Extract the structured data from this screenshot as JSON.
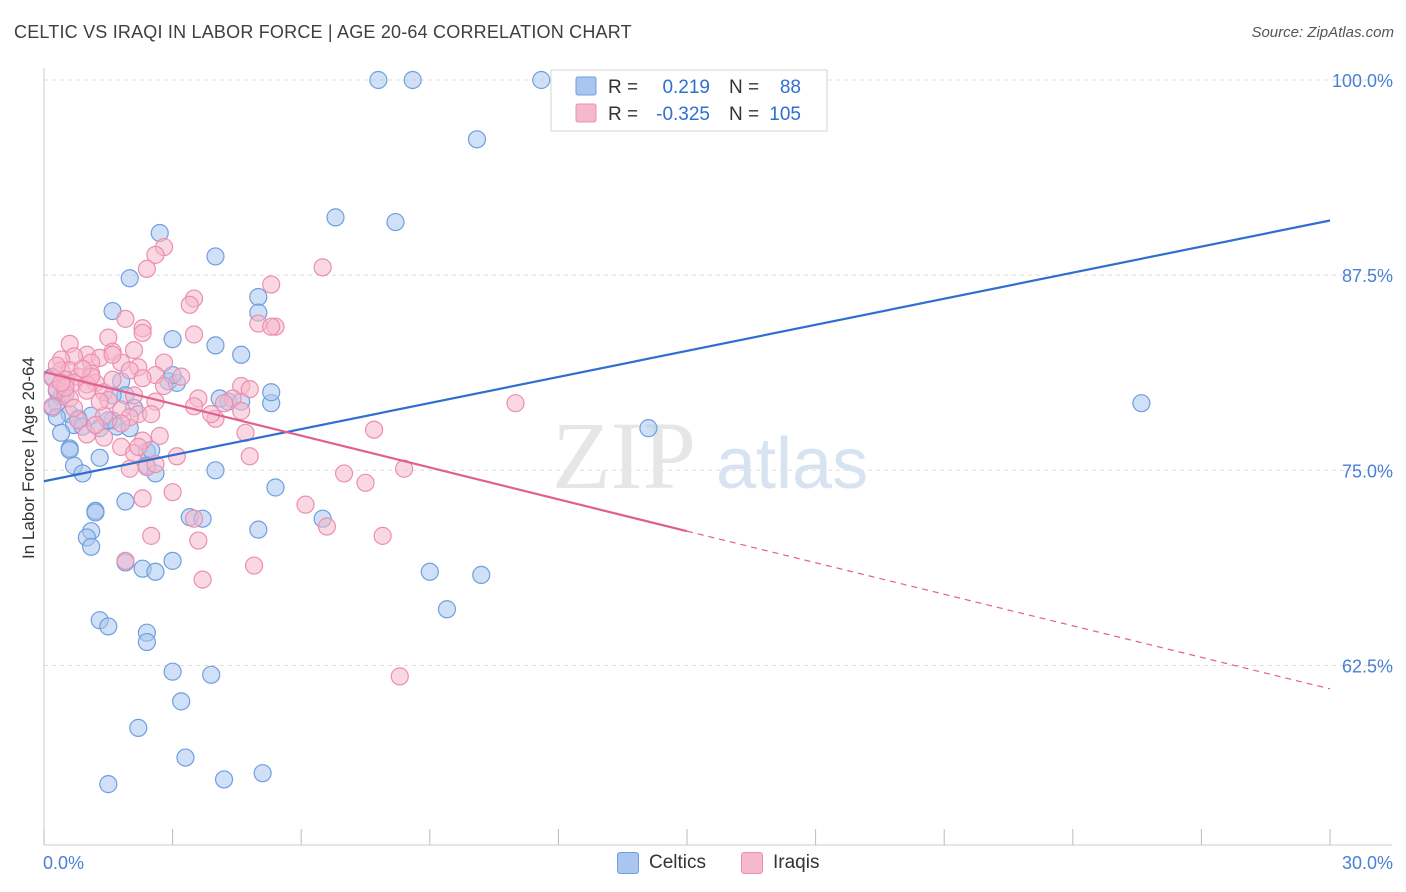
{
  "title": "CELTIC VS IRAQI IN LABOR FORCE | AGE 20-64 CORRELATION CHART",
  "source": "Source: ZipAtlas.com",
  "watermark": {
    "zip": "ZIP",
    "atlas": "atlas"
  },
  "colors": {
    "celtic_fill": "#a9c6ef",
    "celtic_stroke": "#6f9fe0",
    "celtic_line": "#2f6fd0",
    "iraqi_fill": "#f5b8cc",
    "iraqi_stroke": "#ec8fae",
    "iraqi_line": "#e0608e",
    "tick_label": "#4a7fd6",
    "grid": "#dddddd"
  },
  "legend": {
    "rows": [
      {
        "r_label": "R =",
        "r_value": "0.219",
        "n_label": "N =",
        "n_value": "88"
      },
      {
        "r_label": "R =",
        "r_value": "-0.325",
        "n_label": "N =",
        "n_value": "105"
      }
    ]
  },
  "bottom_legend": {
    "celtics": "Celtics",
    "iraqis": "Iraqis"
  },
  "chart_data": {
    "type": "scatter",
    "title": "CELTIC VS IRAQI IN LABOR FORCE | AGE 20-64 CORRELATION CHART",
    "xlabel": "",
    "ylabel": "In Labor Force | Age 20-64",
    "xlim": [
      0,
      30
    ],
    "ylim": [
      51,
      100
    ],
    "x_tick_labels": [
      "0.0%",
      "30.0%"
    ],
    "y_ticks": [
      62.5,
      75.0,
      87.5,
      100.0
    ],
    "y_tick_labels": [
      "62.5%",
      "75.0%",
      "87.5%",
      "100.0%"
    ],
    "series": [
      {
        "name": "Celtics",
        "r": 0.219,
        "n": 88,
        "trend": {
          "x0": 0,
          "y0": 74.3,
          "x1": 30,
          "y1": 91.0
        },
        "points": [
          [
            7.8,
            100
          ],
          [
            8.6,
            100
          ],
          [
            11.6,
            100
          ],
          [
            10.1,
            96.2
          ],
          [
            6.8,
            91.2
          ],
          [
            8.2,
            90.9
          ],
          [
            2.7,
            90.2
          ],
          [
            4.0,
            88.7
          ],
          [
            2.0,
            87.3
          ],
          [
            5.0,
            86.1
          ],
          [
            1.6,
            85.2
          ],
          [
            5.0,
            85.1
          ],
          [
            3.0,
            83.4
          ],
          [
            4.0,
            83.0
          ],
          [
            4.6,
            82.4
          ],
          [
            0.2,
            81.0
          ],
          [
            1.8,
            80.7
          ],
          [
            2.9,
            80.7
          ],
          [
            3.1,
            80.6
          ],
          [
            0.5,
            79.9
          ],
          [
            0.4,
            79.7
          ],
          [
            1.9,
            79.8
          ],
          [
            0.3,
            79.3
          ],
          [
            1.6,
            79.8
          ],
          [
            4.3,
            79.4
          ],
          [
            4.6,
            79.4
          ],
          [
            5.3,
            79.3
          ],
          [
            0.2,
            79.0
          ],
          [
            0.6,
            78.6
          ],
          [
            1.1,
            78.5
          ],
          [
            0.3,
            78.4
          ],
          [
            0.8,
            78.3
          ],
          [
            1.6,
            78.2
          ],
          [
            1.7,
            77.8
          ],
          [
            0.7,
            77.9
          ],
          [
            1.3,
            77.7
          ],
          [
            0.4,
            77.4
          ],
          [
            2.1,
            79.0
          ],
          [
            14.1,
            77.7
          ],
          [
            25.6,
            79.3
          ],
          [
            0.6,
            76.4
          ],
          [
            0.6,
            76.3
          ],
          [
            2.4,
            76.2
          ],
          [
            2.5,
            76.3
          ],
          [
            1.3,
            75.8
          ],
          [
            0.7,
            75.3
          ],
          [
            2.4,
            75.3
          ],
          [
            2.6,
            74.8
          ],
          [
            4.0,
            75.0
          ],
          [
            0.9,
            74.8
          ],
          [
            5.4,
            73.9
          ],
          [
            1.9,
            73.0
          ],
          [
            1.2,
            72.4
          ],
          [
            1.2,
            72.3
          ],
          [
            3.4,
            72.0
          ],
          [
            3.7,
            71.9
          ],
          [
            6.5,
            71.9
          ],
          [
            5.0,
            71.2
          ],
          [
            1.1,
            71.1
          ],
          [
            1.0,
            70.7
          ],
          [
            1.1,
            70.1
          ],
          [
            1.9,
            69.1
          ],
          [
            3.0,
            69.2
          ],
          [
            2.3,
            68.7
          ],
          [
            2.6,
            68.5
          ],
          [
            9.0,
            68.5
          ],
          [
            10.2,
            68.3
          ],
          [
            9.4,
            66.1
          ],
          [
            1.3,
            65.4
          ],
          [
            1.5,
            65.0
          ],
          [
            2.4,
            64.6
          ],
          [
            2.4,
            64.0
          ],
          [
            3.0,
            62.1
          ],
          [
            3.9,
            61.9
          ],
          [
            3.2,
            60.2
          ],
          [
            2.2,
            58.5
          ],
          [
            3.3,
            56.6
          ],
          [
            1.5,
            54.9
          ],
          [
            4.2,
            55.2
          ],
          [
            5.1,
            55.6
          ],
          [
            3.0,
            81.1
          ],
          [
            1.5,
            78.2
          ],
          [
            0.3,
            80.1
          ],
          [
            0.5,
            80.5
          ],
          [
            2.0,
            77.7
          ],
          [
            4.1,
            79.6
          ],
          [
            5.3,
            80.0
          ],
          [
            0.9,
            77.8
          ]
        ]
      },
      {
        "name": "Iraqis",
        "r": -0.325,
        "n": 105,
        "trend": {
          "x0": 0,
          "y0": 81.3,
          "x1": 15,
          "y1": 71.1,
          "dash_x1": 30,
          "dash_y1": 61.0
        },
        "points": [
          [
            2.8,
            89.3
          ],
          [
            2.6,
            88.8
          ],
          [
            2.4,
            87.9
          ],
          [
            6.5,
            88.0
          ],
          [
            5.3,
            86.9
          ],
          [
            3.5,
            86.0
          ],
          [
            3.4,
            85.6
          ],
          [
            1.9,
            84.7
          ],
          [
            5.0,
            84.4
          ],
          [
            5.4,
            84.2
          ],
          [
            2.3,
            84.1
          ],
          [
            2.3,
            83.8
          ],
          [
            3.5,
            83.7
          ],
          [
            1.5,
            83.5
          ],
          [
            0.6,
            83.1
          ],
          [
            1.6,
            82.6
          ],
          [
            2.1,
            82.7
          ],
          [
            1.0,
            82.4
          ],
          [
            0.7,
            82.3
          ],
          [
            1.3,
            82.2
          ],
          [
            0.4,
            82.1
          ],
          [
            1.1,
            81.9
          ],
          [
            1.8,
            81.9
          ],
          [
            2.8,
            81.9
          ],
          [
            2.2,
            81.6
          ],
          [
            0.4,
            81.4
          ],
          [
            0.6,
            81.4
          ],
          [
            1.1,
            81.2
          ],
          [
            0.8,
            81.0
          ],
          [
            2.6,
            81.1
          ],
          [
            3.2,
            81.0
          ],
          [
            0.2,
            80.9
          ],
          [
            0.5,
            80.8
          ],
          [
            0.7,
            80.6
          ],
          [
            1.2,
            80.6
          ],
          [
            1.0,
            80.5
          ],
          [
            2.8,
            80.4
          ],
          [
            4.6,
            80.4
          ],
          [
            0.3,
            80.2
          ],
          [
            1.4,
            80.0
          ],
          [
            0.5,
            79.9
          ],
          [
            0.6,
            79.6
          ],
          [
            1.5,
            79.5
          ],
          [
            3.6,
            79.6
          ],
          [
            4.4,
            79.6
          ],
          [
            2.6,
            79.4
          ],
          [
            4.2,
            79.3
          ],
          [
            11.0,
            79.3
          ],
          [
            0.2,
            79.1
          ],
          [
            1.8,
            78.9
          ],
          [
            3.5,
            79.1
          ],
          [
            2.2,
            78.6
          ],
          [
            2.5,
            78.6
          ],
          [
            1.4,
            78.5
          ],
          [
            2.0,
            78.4
          ],
          [
            0.8,
            78.2
          ],
          [
            1.8,
            78.0
          ],
          [
            4.0,
            78.3
          ],
          [
            7.7,
            77.6
          ],
          [
            1.0,
            77.3
          ],
          [
            4.7,
            77.4
          ],
          [
            1.4,
            77.1
          ],
          [
            2.3,
            76.9
          ],
          [
            1.8,
            76.5
          ],
          [
            2.1,
            76.1
          ],
          [
            3.1,
            75.9
          ],
          [
            4.8,
            75.9
          ],
          [
            2.0,
            75.1
          ],
          [
            2.4,
            75.2
          ],
          [
            8.4,
            75.1
          ],
          [
            7.0,
            74.8
          ],
          [
            7.5,
            74.2
          ],
          [
            3.0,
            73.6
          ],
          [
            2.3,
            73.2
          ],
          [
            6.1,
            72.8
          ],
          [
            3.5,
            71.9
          ],
          [
            6.6,
            71.4
          ],
          [
            2.5,
            70.8
          ],
          [
            3.6,
            70.5
          ],
          [
            7.9,
            70.8
          ],
          [
            1.9,
            69.2
          ],
          [
            4.9,
            68.9
          ],
          [
            3.7,
            68.0
          ],
          [
            8.3,
            61.8
          ],
          [
            4.8,
            80.2
          ],
          [
            1.1,
            81.0
          ],
          [
            0.9,
            81.5
          ],
          [
            0.3,
            81.7
          ],
          [
            1.6,
            80.8
          ],
          [
            2.0,
            81.4
          ],
          [
            1.3,
            79.4
          ],
          [
            0.7,
            79.0
          ],
          [
            2.6,
            75.4
          ],
          [
            4.6,
            78.8
          ],
          [
            2.3,
            80.9
          ],
          [
            1.6,
            82.4
          ],
          [
            0.5,
            80.3
          ],
          [
            3.9,
            78.6
          ],
          [
            2.1,
            79.8
          ],
          [
            1.2,
            77.9
          ],
          [
            2.2,
            76.5
          ],
          [
            0.4,
            80.6
          ],
          [
            1.0,
            80.1
          ],
          [
            2.7,
            77.2
          ],
          [
            5.3,
            84.2
          ]
        ]
      }
    ]
  }
}
